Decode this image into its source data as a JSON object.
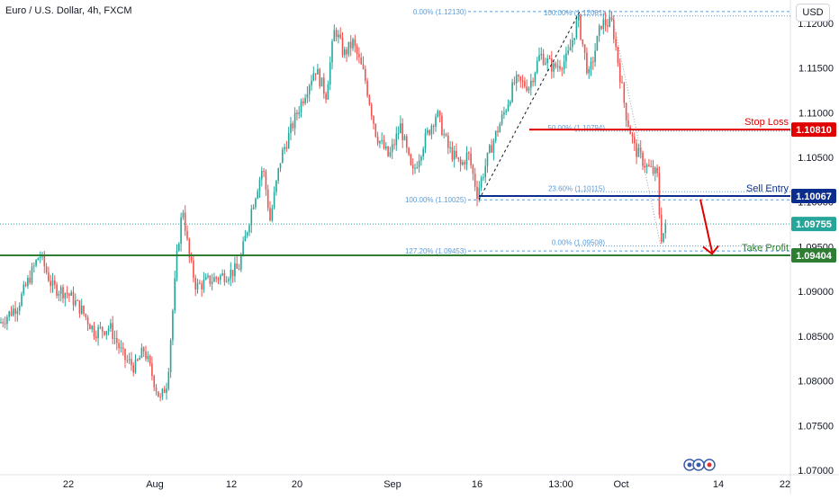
{
  "header": {
    "title": "Euro / U.S. Dollar, 4h, FXCM"
  },
  "currency_button": {
    "label": "USD"
  },
  "colors": {
    "up": "#26a69a",
    "down": "#ef5350",
    "stop": "#e00000",
    "entry": "#0b2e8e",
    "profit": "#2e7d32",
    "fib": "#5b9bd5",
    "grid": "#f0f3fa",
    "axis_text": "#131722"
  },
  "chart_data": {
    "type": "candlestick",
    "title": "Euro / U.S. Dollar, 4h, FXCM",
    "ylim": [
      1.0695,
      1.1226
    ],
    "y_ticks": [
      "1.12000",
      "1.11500",
      "1.11000",
      "1.10500",
      "1.10000",
      "1.09500",
      "1.09000",
      "1.08500",
      "1.08000",
      "1.07500",
      "1.07000"
    ],
    "x_ticks": [
      "22",
      "Aug",
      "12",
      "20",
      "Sep",
      "16",
      "13:00",
      "Oct",
      "14",
      "22"
    ],
    "x_range": [
      0,
      870
    ],
    "x_tick_positions": [
      76,
      172,
      257,
      330,
      436,
      530,
      623,
      690,
      798,
      872
    ],
    "grid": false,
    "path": [
      [
        0,
        1.0865
      ],
      [
        20,
        1.0885
      ],
      [
        44,
        1.0942
      ],
      [
        58,
        1.0905
      ],
      [
        75,
        1.0898
      ],
      [
        90,
        1.088
      ],
      [
        105,
        1.0855
      ],
      [
        122,
        1.086
      ],
      [
        138,
        1.0825
      ],
      [
        150,
        1.0815
      ],
      [
        160,
        1.0835
      ],
      [
        178,
        1.0778
      ],
      [
        186,
        1.08
      ],
      [
        192,
        1.088
      ],
      [
        197,
        1.0945
      ],
      [
        203,
        1.0995
      ],
      [
        210,
        1.0938
      ],
      [
        218,
        1.0905
      ],
      [
        232,
        1.0912
      ],
      [
        248,
        1.0918
      ],
      [
        265,
        1.0925
      ],
      [
        280,
        1.0995
      ],
      [
        292,
        1.104
      ],
      [
        300,
        1.098
      ],
      [
        312,
        1.105
      ],
      [
        330,
        1.11
      ],
      [
        350,
        1.115
      ],
      [
        362,
        1.112
      ],
      [
        372,
        1.1195
      ],
      [
        382,
        1.1165
      ],
      [
        392,
        1.1178
      ],
      [
        405,
        1.114
      ],
      [
        418,
        1.1075
      ],
      [
        432,
        1.105
      ],
      [
        445,
        1.1085
      ],
      [
        458,
        1.103
      ],
      [
        470,
        1.1065
      ],
      [
        485,
        1.11
      ],
      [
        498,
        1.106
      ],
      [
        512,
        1.104
      ],
      [
        520,
        1.1055
      ],
      [
        530,
        1.101
      ],
      [
        545,
        1.106
      ],
      [
        560,
        1.11
      ],
      [
        572,
        1.1135
      ],
      [
        588,
        1.113
      ],
      [
        600,
        1.1165
      ],
      [
        615,
        1.115
      ],
      [
        630,
        1.116
      ],
      [
        642,
        1.1205
      ],
      [
        654,
        1.114
      ],
      [
        668,
        1.12
      ],
      [
        680,
        1.12
      ],
      [
        695,
        1.11
      ],
      [
        705,
        1.106
      ],
      [
        718,
        1.104
      ],
      [
        730,
        1.103
      ],
      [
        734,
        1.096
      ],
      [
        742,
        1.0975
      ]
    ],
    "levels": [
      {
        "label": "Stop Loss",
        "value": 1.1081,
        "price_label": "1.10810"
      },
      {
        "label": "Sell Entry",
        "value": 1.10067,
        "price_label": "1.10067"
      },
      {
        "label": "Take Profit",
        "value": 1.09404,
        "price_label": "1.09404"
      }
    ],
    "current_price": {
      "value": 1.09755,
      "price_label": "1.09755"
    },
    "fib_left": [
      {
        "label": "0.00% (1.12130)",
        "value": 1.1213
      },
      {
        "label": "100.00% (1.10025)",
        "value": 1.10025
      },
      {
        "label": "127.20% (1.09453)",
        "value": 1.09453
      }
    ],
    "fib_right": [
      {
        "label": "100.00% (1.12081)",
        "value": 1.12081
      },
      {
        "label": "50.00% (1.10794)",
        "value": 1.10794
      },
      {
        "label": "23.60% (1.10115)",
        "value": 1.10115
      },
      {
        "label": "0.00% (1.09508)",
        "value": 1.09508
      }
    ]
  }
}
